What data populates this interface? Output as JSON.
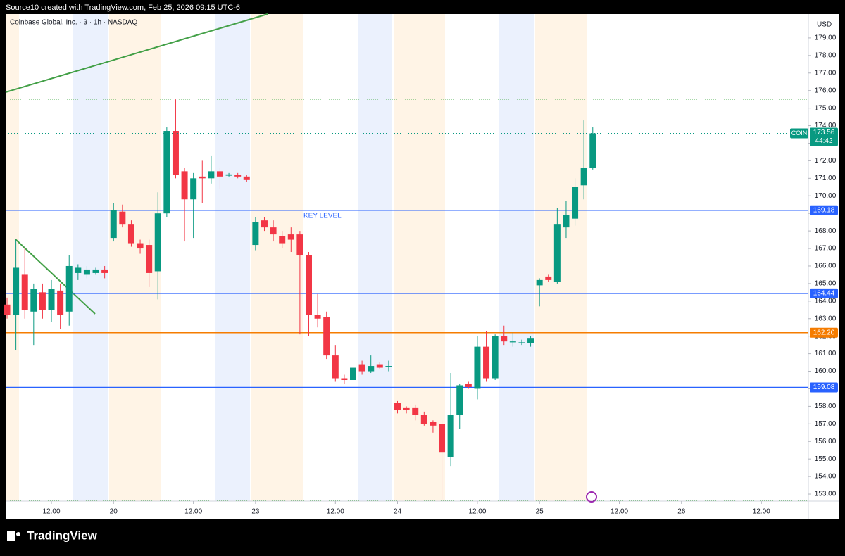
{
  "header": {
    "attribution": "Source10 created with TradingView.com, Feb 25, 2026 09:15 UTC-6"
  },
  "footer": {
    "brand": "TradingView"
  },
  "chart_data": {
    "type": "candlestick",
    "title": "Coinbase Global, Inc. · 3 · 1h · NASDAQ",
    "currency": "USD",
    "up_color": "#089981",
    "down_color": "#f23645",
    "open": [
      163.8,
      163.2,
      165.5,
      163.4,
      164.5,
      163.5,
      164.6,
      163.4,
      165.6,
      165.5,
      165.6,
      165.8,
      167.6,
      169.1,
      168.4,
      167.3,
      167.2,
      165.7,
      169.0,
      173.7,
      171.4,
      169.8,
      171.1,
      171.0,
      171.4,
      171.15,
      171.2,
      171.1,
      167.2,
      168.6,
      168.2,
      167.7,
      167.8,
      167.8,
      166.6,
      163.2,
      163.1,
      160.9,
      159.6,
      159.5,
      160.4,
      160.0,
      160.4,
      160.25,
      158.2,
      157.9,
      157.9,
      157.5,
      157.1,
      157.0,
      155.1,
      157.5,
      159.3,
      159.0,
      161.4,
      159.6,
      162.0,
      161.65,
      161.6,
      161.6,
      164.9,
      165.4,
      165.1,
      168.2,
      168.7,
      170.6,
      171.6
    ],
    "high": [
      164.2,
      167.5,
      167.0,
      165.0,
      165.0,
      165.2,
      165.0,
      166.6,
      166.1,
      166.0,
      165.9,
      166.0,
      169.6,
      169.5,
      168.6,
      167.5,
      167.5,
      170.2,
      173.9,
      175.5,
      171.6,
      171.3,
      172.0,
      172.3,
      171.6,
      171.3,
      171.3,
      171.2,
      168.8,
      168.8,
      168.6,
      168.0,
      168.2,
      168.0,
      166.8,
      164.4,
      163.4,
      161.5,
      159.8,
      160.5,
      160.6,
      160.9,
      160.5,
      160.6,
      158.3,
      158.0,
      158.1,
      157.7,
      157.2,
      157.2,
      159.9,
      159.3,
      159.4,
      162.0,
      162.3,
      162.1,
      162.6,
      162.2,
      161.8,
      162.0,
      165.3,
      165.5,
      169.3,
      169.7,
      171.0,
      174.3,
      173.9
    ],
    "low": [
      163.0,
      161.2,
      163.0,
      161.5,
      163.0,
      162.8,
      162.4,
      162.6,
      165.2,
      165.3,
      165.5,
      165.3,
      167.4,
      168.2,
      167.1,
      166.7,
      164.8,
      164.1,
      168.8,
      171.0,
      167.4,
      167.6,
      169.6,
      170.7,
      170.4,
      171.1,
      171.0,
      170.8,
      166.9,
      168.0,
      167.4,
      167.0,
      166.8,
      162.1,
      162.0,
      162.5,
      160.7,
      159.4,
      159.3,
      158.9,
      159.8,
      159.9,
      160.1,
      160.0,
      157.6,
      157.6,
      157.2,
      156.9,
      156.5,
      152.7,
      154.6,
      156.7,
      159.0,
      158.4,
      159.4,
      159.5,
      161.5,
      161.4,
      161.5,
      161.4,
      163.7,
      165.1,
      165.0,
      167.6,
      168.3,
      169.8,
      171.5
    ],
    "close": [
      163.2,
      165.9,
      163.5,
      164.7,
      163.5,
      164.7,
      163.2,
      166.0,
      165.9,
      165.8,
      165.8,
      165.6,
      169.2,
      168.4,
      167.3,
      167.0,
      165.6,
      169.0,
      173.7,
      171.2,
      169.8,
      171.0,
      171.0,
      171.4,
      171.1,
      171.22,
      171.1,
      170.9,
      168.5,
      168.2,
      167.8,
      167.3,
      167.5,
      166.6,
      163.2,
      163.0,
      160.9,
      159.6,
      159.5,
      160.2,
      160.0,
      160.3,
      160.2,
      160.3,
      157.8,
      157.8,
      157.5,
      157.0,
      156.9,
      155.4,
      157.5,
      159.2,
      159.1,
      161.4,
      159.6,
      162.0,
      161.7,
      161.7,
      161.65,
      161.9,
      165.2,
      165.2,
      168.4,
      168.9,
      170.5,
      171.6,
      173.56
    ],
    "xlim": [
      -0.16,
      90.3
    ],
    "xticks": [
      {
        "value": 5,
        "label": "12:00"
      },
      {
        "value": 12,
        "label": "20"
      },
      {
        "value": 21,
        "label": "12:00"
      },
      {
        "value": 28,
        "label": "23"
      },
      {
        "value": 37,
        "label": "12:00"
      },
      {
        "value": 44,
        "label": "24"
      },
      {
        "value": 53,
        "label": "12:00"
      },
      {
        "value": 60,
        "label": "25"
      },
      {
        "value": 69,
        "label": "12:00"
      },
      {
        "value": 76,
        "label": "26"
      },
      {
        "value": 85,
        "label": "12:00"
      }
    ],
    "ylim": [
      152.6,
      180.28
    ],
    "yticks": [
      {
        "value": 153,
        "label": "153.00"
      },
      {
        "value": 154,
        "label": "154.00"
      },
      {
        "value": 155,
        "label": "155.00"
      },
      {
        "value": 156,
        "label": "156.00"
      },
      {
        "value": 157,
        "label": "157.00"
      },
      {
        "value": 158,
        "label": "158.00"
      },
      {
        "value": 159,
        "label": "159.00"
      },
      {
        "value": 160,
        "label": "160.00"
      },
      {
        "value": 161,
        "label": "161.00"
      },
      {
        "value": 162,
        "label": "162.00"
      },
      {
        "value": 163,
        "label": "163.00"
      },
      {
        "value": 164,
        "label": "164.00"
      },
      {
        "value": 165,
        "label": "165.00"
      },
      {
        "value": 166,
        "label": "166.00"
      },
      {
        "value": 167,
        "label": "167.00"
      },
      {
        "value": 168,
        "label": "168.00"
      },
      {
        "value": 169,
        "label": "169.00"
      },
      {
        "value": 170,
        "label": "170.00"
      },
      {
        "value": 171,
        "label": "171.00"
      },
      {
        "value": 172,
        "label": "172.00"
      },
      {
        "value": 173,
        "label": "173.00"
      },
      {
        "value": 174,
        "label": "174.00"
      },
      {
        "value": 175,
        "label": "175.00"
      },
      {
        "value": 176,
        "label": "176.00"
      },
      {
        "value": 177,
        "label": "177.00"
      },
      {
        "value": 178,
        "label": "178.00"
      },
      {
        "value": 179,
        "label": "179.00"
      }
    ],
    "levels": [
      {
        "value": 169.18,
        "label": "169.18",
        "color": "#2962ff"
      },
      {
        "value": 164.44,
        "label": "164.44",
        "color": "#2962ff"
      },
      {
        "value": 162.2,
        "label": "162.20",
        "color": "#f57c00"
      },
      {
        "value": 159.08,
        "label": "159.08",
        "color": "#2962ff"
      }
    ],
    "annotation": "KEY LEVEL",
    "last_price": {
      "symbol": "COIN",
      "value": 173.56,
      "label": "173.56",
      "countdown": "44:42"
    }
  }
}
